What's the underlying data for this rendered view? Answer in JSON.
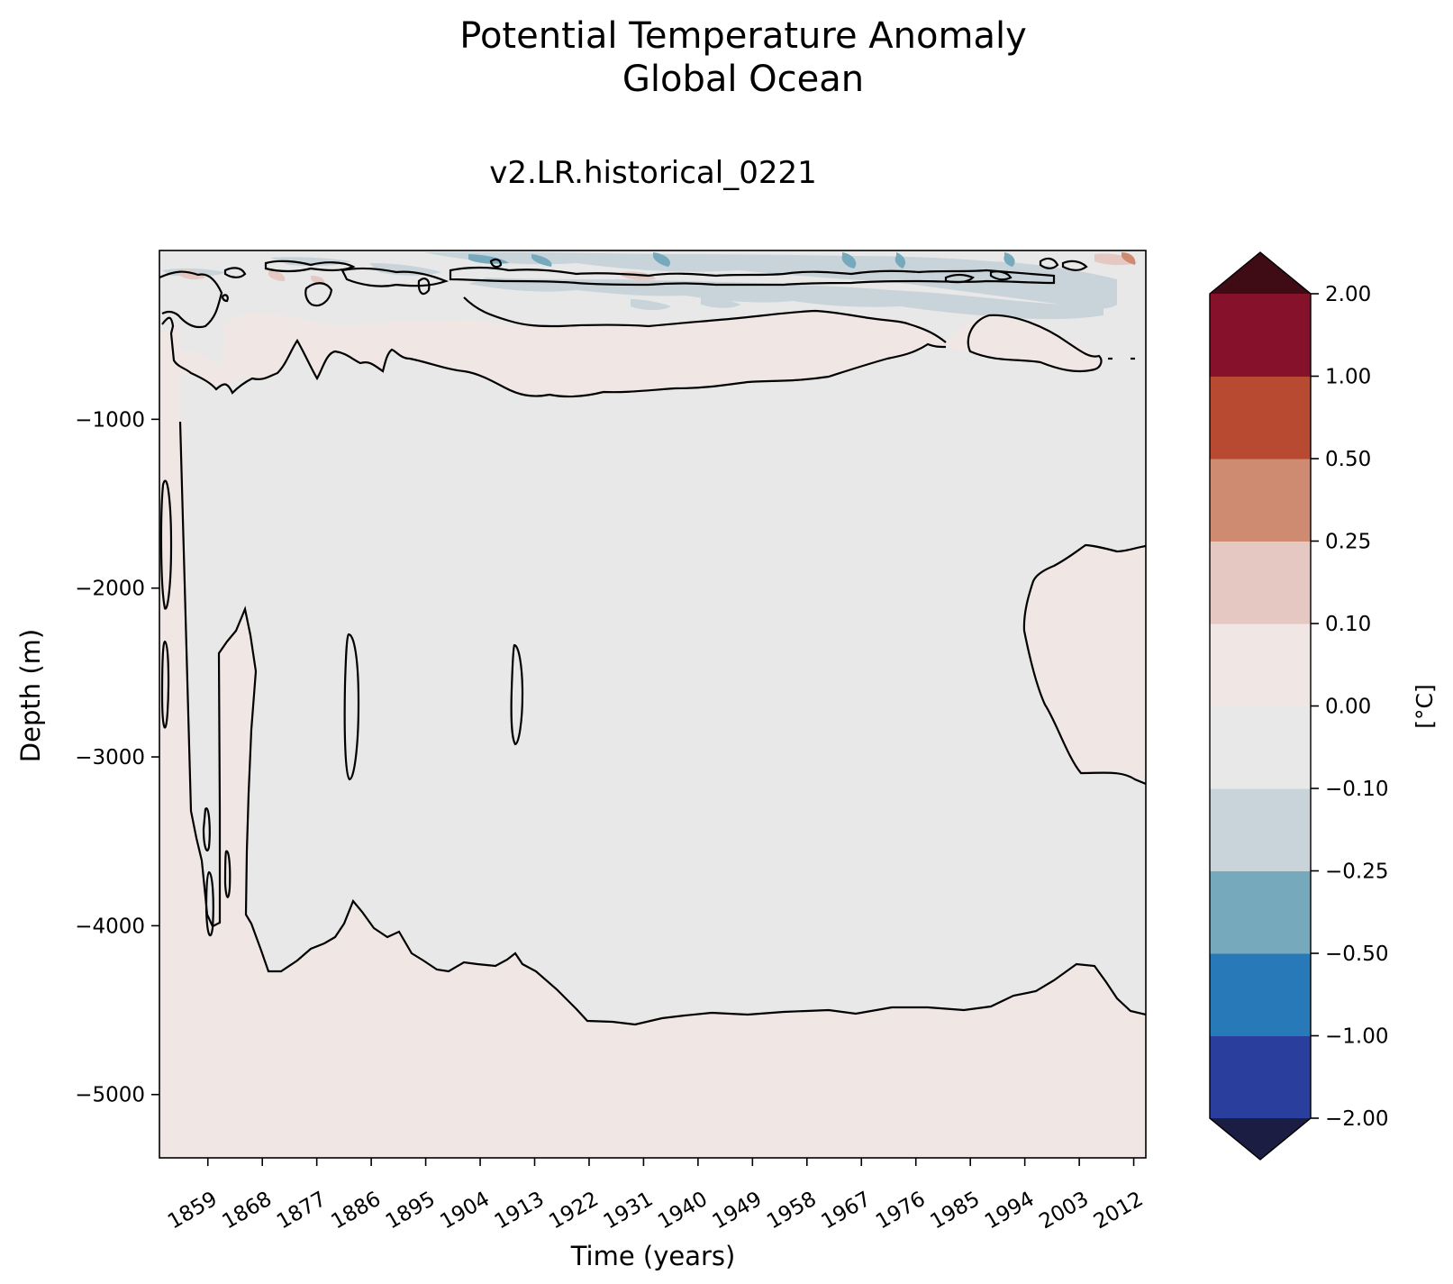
{
  "chart_data": {
    "type": "heatmap",
    "title": [
      "Potential Temperature Anomaly",
      "Global Ocean"
    ],
    "subtitle": "v2.LR.historical_0221",
    "xlabel": "Time (years)",
    "ylabel": "Depth (m)",
    "x_ticks": [
      1859,
      1868,
      1877,
      1886,
      1895,
      1904,
      1913,
      1922,
      1931,
      1940,
      1949,
      1958,
      1967,
      1976,
      1985,
      1994,
      2003,
      2012
    ],
    "x_tick_labels": [
      "1859",
      "1868",
      "1877",
      "1886",
      "1895",
      "1904",
      "1913",
      "1922",
      "1931",
      "1940",
      "1949",
      "1958",
      "1967",
      "1976",
      "1985",
      "1994",
      "2003",
      "2012"
    ],
    "xlim": [
      1851,
      2014
    ],
    "y_ticks": [
      -1000,
      -2000,
      -3000,
      -4000,
      -5000
    ],
    "y_tick_labels": [
      "−1000",
      "−2000",
      "−3000",
      "−4000",
      "−5000"
    ],
    "ylim": [
      -5375,
      0
    ],
    "colorbar": {
      "label": "[°C]",
      "levels": [
        -2.0,
        -1.0,
        -0.5,
        -0.25,
        -0.1,
        0.0,
        0.1,
        0.25,
        0.5,
        1.0,
        2.0
      ],
      "level_labels": [
        "−2.00",
        "−1.00",
        "−0.50",
        "−0.25",
        "−0.10",
        "0.00",
        "0.10",
        "0.25",
        "0.50",
        "1.00",
        "2.00"
      ],
      "colors": [
        "#2a3f9d",
        "#2879b8",
        "#77a9bd",
        "#c9d4da",
        "#e9e8e9",
        "#f0e6e4",
        "#e4c8c1",
        "#ce8b71",
        "#b84a31",
        "#85112a"
      ],
      "under_color": "#1c1d42",
      "over_color": "#3f0c15",
      "extend": "both"
    },
    "field": {
      "background_anomaly": "0.00 to 0.10",
      "main_body_anomaly": "-0.10 to 0.00",
      "near_surface_anomaly": "-0.50 to 0.25",
      "zero_contour": "black"
    }
  }
}
